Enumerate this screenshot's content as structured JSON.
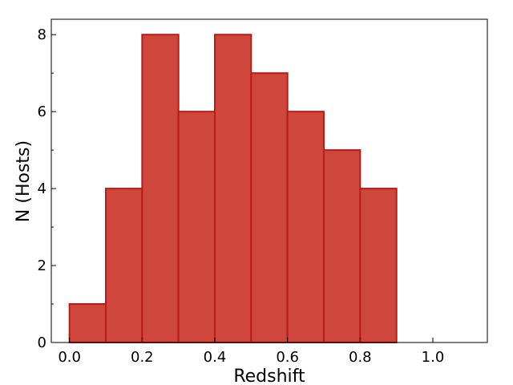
{
  "chart_data": {
    "type": "bar",
    "title": "",
    "xlabel": "Redshift",
    "ylabel": "N (Hosts)",
    "bin_edges": [
      0.0,
      0.1,
      0.2,
      0.3,
      0.4,
      0.5,
      0.6,
      0.7,
      0.8,
      0.9,
      1.0,
      1.1
    ],
    "values": [
      1,
      4,
      8,
      6,
      8,
      7,
      6,
      5,
      4,
      0,
      0
    ],
    "xlim": [
      -0.05,
      1.15
    ],
    "ylim": [
      0,
      8.4
    ],
    "x_ticks": [
      0.0,
      0.2,
      0.4,
      0.6,
      0.8,
      1.0
    ],
    "x_tick_labels": [
      "0.0",
      "0.2",
      "0.4",
      "0.6",
      "0.8",
      "1.0"
    ],
    "y_ticks": [
      0,
      2,
      4,
      6,
      8
    ],
    "y_tick_labels": [
      "0",
      "2",
      "4",
      "6",
      "8"
    ],
    "grid": false,
    "legend": "none",
    "bar_fill_color": "#cf463c",
    "bar_edge_color": "#b81d14"
  }
}
